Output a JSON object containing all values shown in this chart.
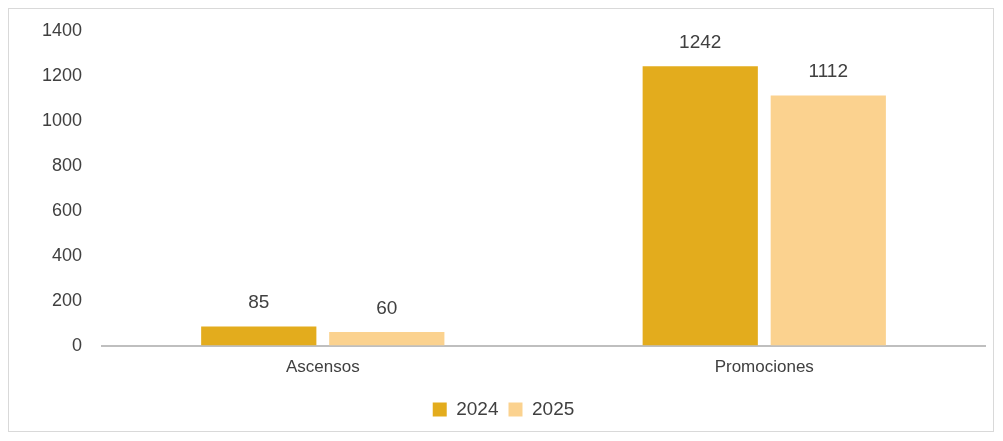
{
  "chart_data": {
    "type": "bar",
    "categories": [
      "Ascensos",
      "Promociones"
    ],
    "series": [
      {
        "name": "2024",
        "color": "#e3ac1d",
        "values": [
          85,
          1242
        ]
      },
      {
        "name": "2025",
        "color": "#fbd28f",
        "values": [
          60,
          1112
        ]
      }
    ],
    "ylim": [
      0,
      1400
    ],
    "yticks": [
      0,
      200,
      400,
      600,
      800,
      1000,
      1200,
      1400
    ],
    "grid": false,
    "legend": "bottom",
    "data_labels": true
  }
}
